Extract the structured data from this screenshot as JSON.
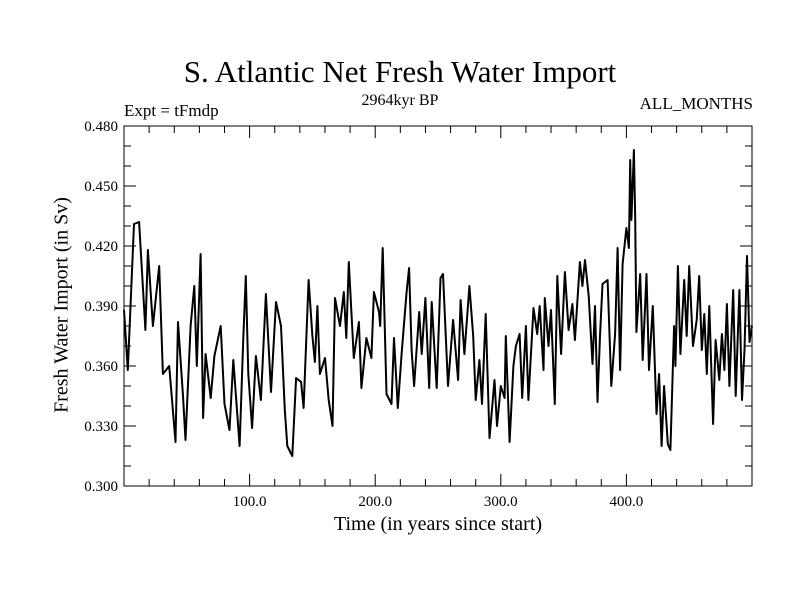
{
  "chart_data": {
    "type": "line",
    "title": "S. Atlantic Net Fresh Water Import",
    "subtitle_left": "Expt = tFmdp",
    "subtitle_center": "2964kyr BP",
    "subtitle_right": "ALL_MONTHS",
    "xlabel": "Time (in years since start)",
    "ylabel": "Fresh Water Import (in Sv)",
    "xlim": [
      0,
      500
    ],
    "ylim": [
      0.3,
      0.48
    ],
    "x_ticks": [
      100,
      200,
      300,
      400
    ],
    "x_tick_labels": [
      "100.0",
      "200.0",
      "300.0",
      "400.0"
    ],
    "x_minor_step": 20,
    "y_ticks": [
      0.3,
      0.33,
      0.36,
      0.39,
      0.42,
      0.45,
      0.48
    ],
    "y_tick_labels": [
      "0.300",
      "0.330",
      "0.360",
      "0.390",
      "0.420",
      "0.450",
      "0.480"
    ],
    "y_minor_step": 0.01,
    "grid": false,
    "line_color": "#000000",
    "series": [
      {
        "name": "Fresh Water Import",
        "points": [
          [
            0,
            0.388
          ],
          [
            3,
            0.358
          ],
          [
            8,
            0.431
          ],
          [
            12,
            0.432
          ],
          [
            17,
            0.378
          ],
          [
            19,
            0.418
          ],
          [
            23,
            0.38
          ],
          [
            28,
            0.41
          ],
          [
            31,
            0.356
          ],
          [
            36,
            0.36
          ],
          [
            41,
            0.322
          ],
          [
            43,
            0.382
          ],
          [
            47,
            0.345
          ],
          [
            49,
            0.323
          ],
          [
            53,
            0.38
          ],
          [
            56,
            0.4
          ],
          [
            58,
            0.36
          ],
          [
            61,
            0.416
          ],
          [
            63,
            0.334
          ],
          [
            65,
            0.366
          ],
          [
            69,
            0.344
          ],
          [
            72,
            0.365
          ],
          [
            77,
            0.38
          ],
          [
            80,
            0.341
          ],
          [
            84,
            0.328
          ],
          [
            87,
            0.363
          ],
          [
            92,
            0.32
          ],
          [
            95,
            0.374
          ],
          [
            97,
            0.405
          ],
          [
            99,
            0.356
          ],
          [
            102,
            0.329
          ],
          [
            105,
            0.365
          ],
          [
            109,
            0.343
          ],
          [
            113,
            0.396
          ],
          [
            117,
            0.347
          ],
          [
            121,
            0.392
          ],
          [
            125,
            0.38
          ],
          [
            128,
            0.338
          ],
          [
            130,
            0.32
          ],
          [
            134,
            0.315
          ],
          [
            137,
            0.354
          ],
          [
            141,
            0.352
          ],
          [
            143,
            0.339
          ],
          [
            147,
            0.403
          ],
          [
            150,
            0.375
          ],
          [
            152,
            0.362
          ],
          [
            154,
            0.39
          ],
          [
            156,
            0.356
          ],
          [
            160,
            0.364
          ],
          [
            163,
            0.343
          ],
          [
            166,
            0.33
          ],
          [
            168,
            0.394
          ],
          [
            172,
            0.38
          ],
          [
            175,
            0.397
          ],
          [
            177,
            0.374
          ],
          [
            179,
            0.412
          ],
          [
            183,
            0.364
          ],
          [
            187,
            0.382
          ],
          [
            189,
            0.349
          ],
          [
            193,
            0.374
          ],
          [
            197,
            0.364
          ],
          [
            199,
            0.397
          ],
          [
            203,
            0.387
          ],
          [
            204,
            0.38
          ],
          [
            206,
            0.419
          ],
          [
            209,
            0.346
          ],
          [
            213,
            0.341
          ],
          [
            215,
            0.374
          ],
          [
            218,
            0.339
          ],
          [
            221,
            0.366
          ],
          [
            225,
            0.397
          ],
          [
            227,
            0.409
          ],
          [
            229,
            0.368
          ],
          [
            231,
            0.35
          ],
          [
            235,
            0.387
          ],
          [
            237,
            0.366
          ],
          [
            240,
            0.394
          ],
          [
            243,
            0.349
          ],
          [
            245,
            0.392
          ],
          [
            249,
            0.349
          ],
          [
            252,
            0.404
          ],
          [
            254,
            0.406
          ],
          [
            258,
            0.35
          ],
          [
            262,
            0.383
          ],
          [
            266,
            0.353
          ],
          [
            268,
            0.393
          ],
          [
            271,
            0.366
          ],
          [
            275,
            0.4
          ],
          [
            278,
            0.375
          ],
          [
            280,
            0.343
          ],
          [
            283,
            0.363
          ],
          [
            285,
            0.341
          ],
          [
            288,
            0.386
          ],
          [
            291,
            0.324
          ],
          [
            295,
            0.353
          ],
          [
            297,
            0.33
          ],
          [
            300,
            0.35
          ],
          [
            303,
            0.344
          ],
          [
            304,
            0.375
          ],
          [
            307,
            0.322
          ],
          [
            310,
            0.36
          ],
          [
            312,
            0.37
          ],
          [
            315,
            0.376
          ],
          [
            317,
            0.344
          ],
          [
            320,
            0.38
          ],
          [
            322,
            0.343
          ],
          [
            326,
            0.389
          ],
          [
            329,
            0.376
          ],
          [
            331,
            0.39
          ],
          [
            334,
            0.358
          ],
          [
            335,
            0.394
          ],
          [
            338,
            0.37
          ],
          [
            340,
            0.388
          ],
          [
            343,
            0.341
          ],
          [
            345,
            0.405
          ],
          [
            348,
            0.366
          ],
          [
            351,
            0.407
          ],
          [
            354,
            0.378
          ],
          [
            357,
            0.391
          ],
          [
            359,
            0.373
          ],
          [
            363,
            0.412
          ],
          [
            365,
            0.4
          ],
          [
            367,
            0.413
          ],
          [
            370,
            0.395
          ],
          [
            373,
            0.361
          ],
          [
            375,
            0.39
          ],
          [
            377,
            0.342
          ],
          [
            379,
            0.375
          ],
          [
            381,
            0.401
          ],
          [
            385,
            0.403
          ],
          [
            388,
            0.35
          ],
          [
            391,
            0.376
          ],
          [
            393,
            0.419
          ],
          [
            395,
            0.358
          ],
          [
            397,
            0.411
          ],
          [
            400,
            0.429
          ],
          [
            402,
            0.419
          ],
          [
            403,
            0.463
          ],
          [
            404,
            0.433
          ],
          [
            406,
            0.468
          ],
          [
            407,
            0.434
          ],
          [
            408,
            0.377
          ],
          [
            411,
            0.406
          ],
          [
            413,
            0.363
          ],
          [
            416,
            0.406
          ],
          [
            418,
            0.358
          ],
          [
            421,
            0.39
          ],
          [
            424,
            0.336
          ],
          [
            426,
            0.356
          ],
          [
            428,
            0.32
          ],
          [
            430,
            0.35
          ],
          [
            433,
            0.321
          ],
          [
            435,
            0.318
          ],
          [
            438,
            0.38
          ],
          [
            439,
            0.36
          ],
          [
            441,
            0.41
          ],
          [
            443,
            0.366
          ],
          [
            446,
            0.403
          ],
          [
            448,
            0.375
          ],
          [
            450,
            0.41
          ],
          [
            453,
            0.37
          ],
          [
            456,
            0.383
          ],
          [
            458,
            0.405
          ],
          [
            460,
            0.368
          ],
          [
            462,
            0.386
          ],
          [
            464,
            0.356
          ],
          [
            466,
            0.39
          ],
          [
            469,
            0.331
          ],
          [
            471,
            0.373
          ],
          [
            474,
            0.353
          ],
          [
            476,
            0.376
          ],
          [
            478,
            0.358
          ],
          [
            480,
            0.391
          ],
          [
            482,
            0.35
          ],
          [
            485,
            0.398
          ],
          [
            487,
            0.345
          ],
          [
            490,
            0.398
          ],
          [
            492,
            0.343
          ],
          [
            494,
            0.368
          ],
          [
            496,
            0.415
          ],
          [
            498,
            0.372
          ],
          [
            500,
            0.38
          ]
        ]
      }
    ]
  }
}
